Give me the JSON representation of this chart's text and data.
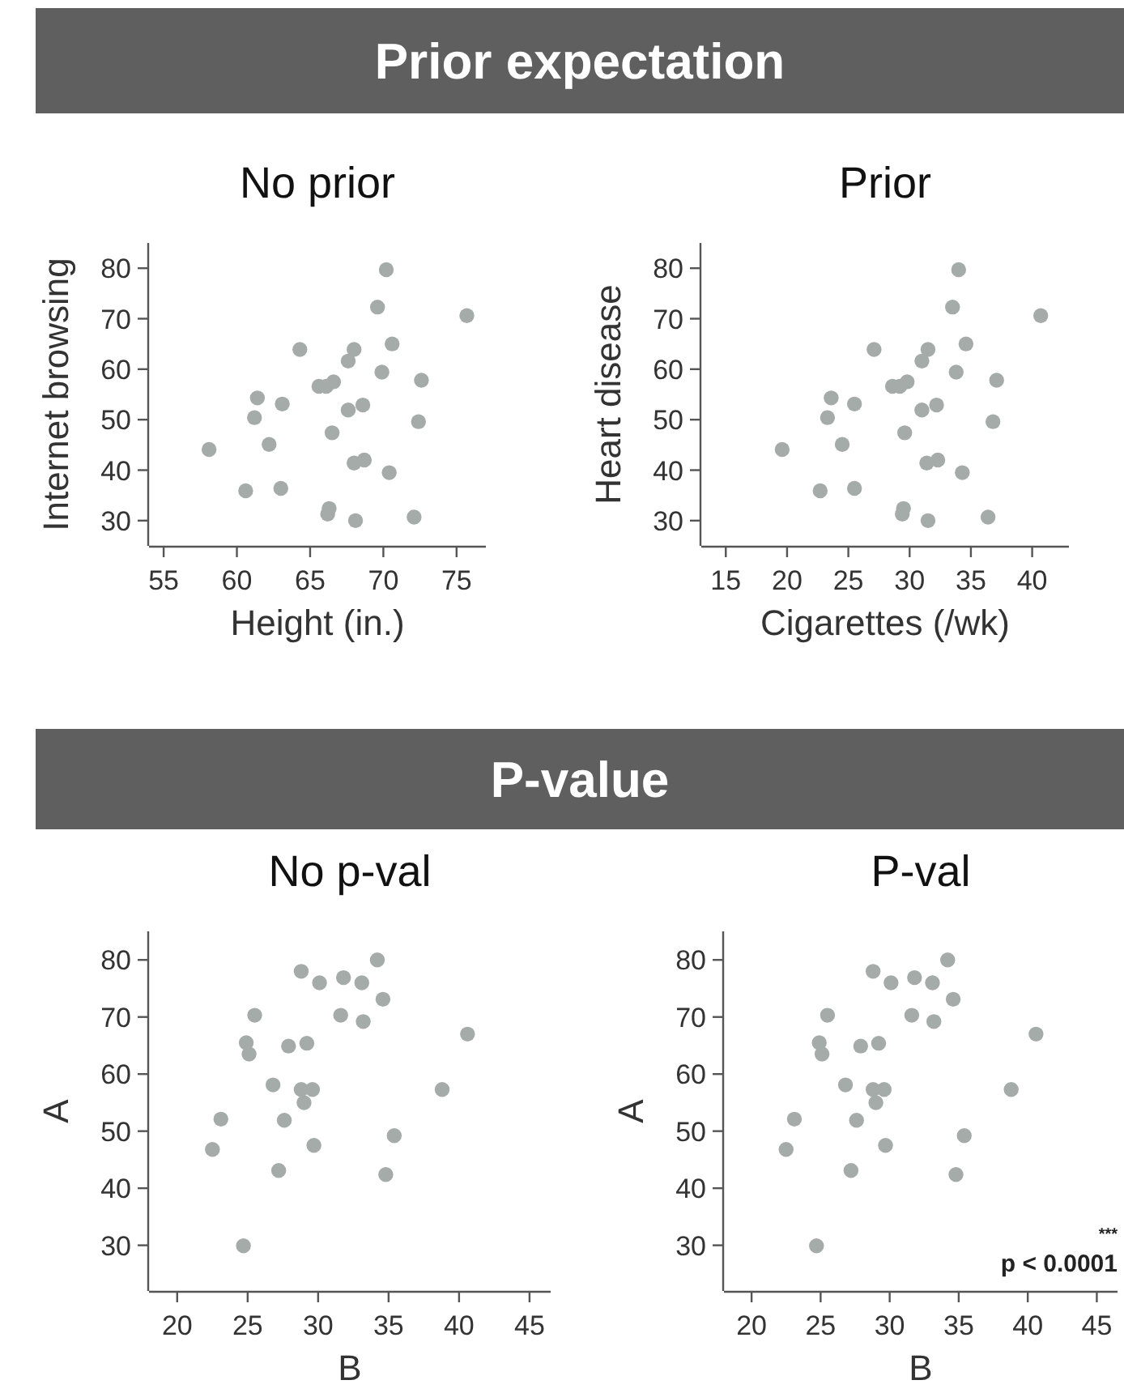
{
  "chart_data": [
    {
      "type": "other",
      "title": "Prior expectation"
    },
    {
      "type": "scatter",
      "title": "No prior",
      "xlabel": "Height (in.)",
      "ylabel": "Internet browsing",
      "marker": "circle",
      "xlim": [
        54,
        77
      ],
      "xticks": [
        55,
        60,
        65,
        70,
        75
      ],
      "ylim": [
        25,
        85
      ],
      "yticks": [
        30,
        40,
        50,
        60,
        70,
        80
      ],
      "x": [
        70.2,
        69.6,
        75.7,
        64.3,
        68.0,
        67.6,
        70.6,
        69.9,
        72.6,
        65.6,
        66.1,
        66.6,
        61.4,
        63.1,
        61.2,
        67.6,
        68.6,
        72.4,
        66.5,
        58.1,
        62.2,
        68.0,
        68.7,
        70.4,
        60.6,
        63.0,
        66.3,
        66.2,
        68.1,
        72.1
      ],
      "series": [
        {
          "color": "#a4aba8",
          "values": [
            79.7,
            72.3,
            70.6,
            63.9,
            63.9,
            61.6,
            65.0,
            59.4,
            57.8,
            56.6,
            56.6,
            57.5,
            54.3,
            53.1,
            50.4,
            51.9,
            52.9,
            49.6,
            47.4,
            44.1,
            45.1,
            41.4,
            42.0,
            39.5,
            35.9,
            36.4,
            32.4,
            31.3,
            30.0,
            30.7
          ]
        }
      ]
    },
    {
      "type": "scatter",
      "title": "Prior",
      "xlabel": "Cigarettes (/wk)",
      "ylabel": "Heart disease",
      "marker": "circle",
      "xlim": [
        13,
        43
      ],
      "xticks": [
        15,
        20,
        25,
        30,
        35,
        40
      ],
      "ylim": [
        25,
        85
      ],
      "yticks": [
        30,
        40,
        50,
        60,
        70,
        80
      ],
      "x": [
        34.0,
        33.5,
        40.7,
        27.1,
        31.5,
        31.0,
        34.6,
        33.8,
        37.1,
        28.6,
        29.2,
        29.8,
        23.6,
        25.5,
        23.3,
        31.0,
        32.2,
        36.8,
        29.6,
        19.6,
        24.5,
        31.4,
        32.3,
        34.3,
        22.7,
        25.5,
        29.5,
        29.4,
        31.5,
        36.4
      ],
      "series": [
        {
          "color": "#a4aba8",
          "values": [
            79.7,
            72.3,
            70.6,
            63.9,
            63.9,
            61.6,
            65.0,
            59.4,
            57.8,
            56.6,
            56.6,
            57.5,
            54.3,
            53.1,
            50.4,
            51.9,
            52.9,
            49.6,
            47.4,
            44.1,
            45.1,
            41.4,
            42.0,
            39.5,
            35.9,
            36.4,
            32.4,
            31.3,
            30.0,
            30.7
          ]
        }
      ]
    },
    {
      "type": "other",
      "title": "P-value"
    },
    {
      "type": "scatter",
      "title": "No p-val",
      "xlabel": "B",
      "ylabel": "A",
      "marker": "circle",
      "xlim": [
        18,
        46.5
      ],
      "xticks": [
        20,
        25,
        30,
        35,
        40,
        45
      ],
      "ylim": [
        22,
        85
      ],
      "yticks": [
        30,
        40,
        50,
        60,
        70,
        80
      ],
      "x": [
        34.2,
        28.8,
        30.1,
        31.8,
        33.1,
        34.6,
        25.5,
        31.6,
        33.2,
        40.6,
        24.9,
        25.1,
        27.9,
        29.2,
        26.8,
        28.8,
        29.6,
        29.0,
        38.8,
        23.1,
        27.6,
        22.5,
        29.7,
        35.4,
        27.2,
        34.8,
        24.7
      ],
      "series": [
        {
          "color": "#a4aba8",
          "values": [
            80.0,
            78.0,
            76.0,
            76.9,
            76.0,
            73.1,
            70.3,
            70.3,
            69.2,
            67.0,
            65.5,
            63.5,
            64.9,
            65.4,
            58.1,
            57.3,
            57.3,
            55.0,
            57.3,
            52.1,
            51.9,
            46.8,
            47.5,
            49.2,
            43.1,
            42.4,
            29.9
          ]
        }
      ]
    },
    {
      "type": "scatter",
      "title": "P-val",
      "xlabel": "B",
      "ylabel": "A",
      "marker": "circle",
      "xlim": [
        18,
        46.5
      ],
      "xticks": [
        20,
        25,
        30,
        35,
        40,
        45
      ],
      "ylim": [
        22,
        85
      ],
      "yticks": [
        30,
        40,
        50,
        60,
        70,
        80
      ],
      "x": [
        34.2,
        28.8,
        30.1,
        31.8,
        33.1,
        34.6,
        25.5,
        31.6,
        33.2,
        40.6,
        24.9,
        25.1,
        27.9,
        29.2,
        26.8,
        28.8,
        29.6,
        29.0,
        38.8,
        23.1,
        27.6,
        22.5,
        29.7,
        35.4,
        27.2,
        34.8,
        24.7
      ],
      "series": [
        {
          "color": "#a4aba8",
          "values": [
            80.0,
            78.0,
            76.0,
            76.9,
            76.0,
            73.1,
            70.3,
            70.3,
            69.2,
            67.0,
            65.5,
            63.5,
            64.9,
            65.4,
            58.1,
            57.3,
            57.3,
            55.0,
            57.3,
            52.1,
            51.9,
            46.8,
            47.5,
            49.2,
            43.1,
            42.4,
            29.9
          ]
        }
      ],
      "annotations": [
        "***",
        "p < 0.0001"
      ]
    }
  ]
}
